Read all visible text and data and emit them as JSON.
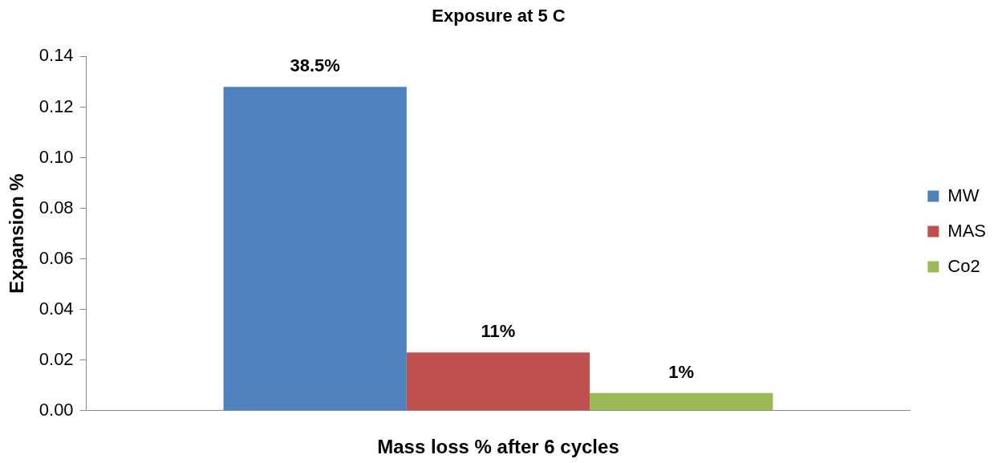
{
  "chart_data": {
    "type": "bar",
    "title": "Exposure at 5 C",
    "xlabel": "Mass loss % after 6 cycles",
    "ylabel": "Expansion %",
    "categories": [
      null
    ],
    "series": [
      {
        "name": "MW",
        "color": "#4f81bd",
        "values": [
          0.128
        ]
      },
      {
        "name": "MAS",
        "color": "#c0504d",
        "values": [
          0.023
        ]
      },
      {
        "name": "Co2",
        "color": "#9bbb59",
        "values": [
          0.007
        ]
      }
    ],
    "annotations": [
      {
        "text": "38.5%",
        "y": 0.128
      },
      {
        "text": "11%",
        "y": 0.023
      },
      {
        "text": "1%",
        "y": 0.007
      }
    ],
    "ylim": [
      0,
      0.14
    ],
    "yticks": [
      {
        "value": 0,
        "label": "0.00"
      },
      {
        "value": 0.02,
        "label": "0.02"
      },
      {
        "value": 0.04,
        "label": "0.04"
      },
      {
        "value": 0.06,
        "label": "0.06"
      },
      {
        "value": 0.08,
        "label": "0.08"
      },
      {
        "value": 0.1,
        "label": "0.10"
      },
      {
        "value": 0.12,
        "label": "0.12"
      },
      {
        "value": 0.14,
        "label": "0.14"
      }
    ],
    "grid": false,
    "legend": "right"
  }
}
